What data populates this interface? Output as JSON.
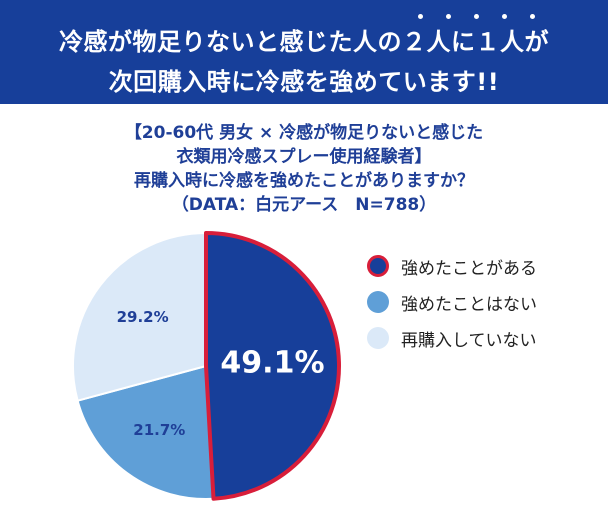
{
  "banner": {
    "line1": "冷感が物足りないと感じた人の２人に１人が",
    "line2": "次回購入時に冷感を強めています!!"
  },
  "survey": {
    "line1": "【20-60代 男女 × 冷感が物足りないと感じた",
    "line2": "衣類用冷感スプレー使用経験者】",
    "line3": "再購入時に冷感を強めたことがありますか？",
    "line4": "（DATA：白元アース　N=788）"
  },
  "chart_data": {
    "type": "pie",
    "slices": [
      {
        "label": "強めたことがある",
        "value": 49.1,
        "value_label": "49.1%",
        "color": "#173f9a",
        "border": "#d81e3a"
      },
      {
        "label": "強めたことはない",
        "value": 21.7,
        "value_label": "21.7%",
        "color": "#5f9fd7"
      },
      {
        "label": "再購入していない",
        "value": 29.2,
        "value_label": "29.2%",
        "color": "#dbe9f8"
      }
    ],
    "legend_position": "right"
  }
}
